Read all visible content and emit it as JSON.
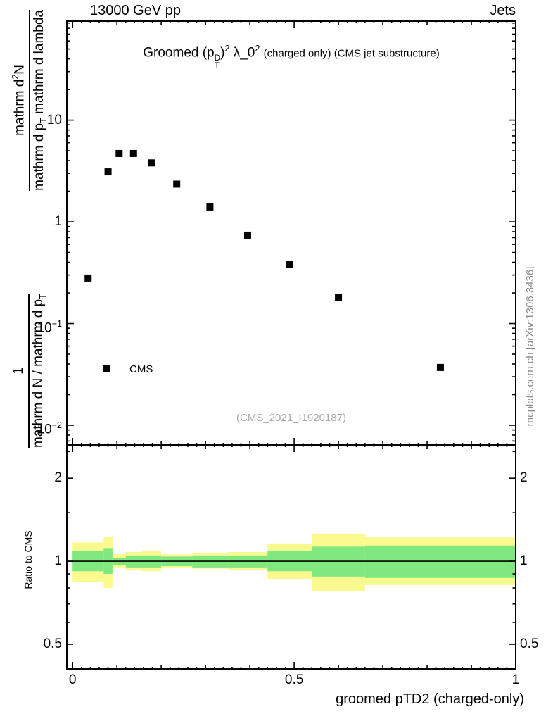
{
  "header": {
    "left": "13000 GeV pp",
    "right": "Jets"
  },
  "title": {
    "segments": [
      {
        "t": "Groomed "
      },
      {
        "t": "(p"
      },
      {
        "s": "stack",
        "sup": "D",
        "sub": "T"
      },
      {
        "t": ")"
      },
      {
        "t": "2",
        "s": "sup"
      },
      {
        "t": " λ_0"
      },
      {
        "t": "2",
        "s": "sup"
      },
      {
        "t": "  "
      },
      {
        "t": "(charged only) (CMS jet substructure)",
        "s": "small"
      }
    ]
  },
  "ylabel": {
    "frac1": {
      "num": [
        {
          "t": "1"
        }
      ],
      "den": [
        {
          "t": "mathrm d N / mathrm d p"
        },
        {
          "t": "T",
          "s": "sub"
        }
      ]
    },
    "frac2": {
      "num": [
        {
          "t": "mathrm d"
        },
        {
          "t": "2",
          "s": "sup"
        },
        {
          "t": "N"
        }
      ],
      "den": [
        {
          "t": "mathrm d p"
        },
        {
          "t": "T",
          "s": "sub"
        },
        {
          "t": " mathrm d lambda"
        }
      ]
    }
  },
  "ratio_label": "Ratio to CMS",
  "xlabel": "groomed pTD2 (charged-only)",
  "legend": {
    "label": "CMS"
  },
  "watermark": "(CMS_2021_I1920187)",
  "side_caption": "mcplots.cern.ch [arXiv:1306.3436]",
  "chart_data": {
    "type": "scatter",
    "title": "Groomed (p_T^D)^2 λ_0^2 (charged only) (CMS jet substructure)",
    "xlabel": "groomed pTD2 (charged-only)",
    "ylabel": "1/(dN/dp_T) d^2N/(dp_T dlambda)",
    "legend_entries": [
      "CMS"
    ],
    "grid": false,
    "xlim": [
      -0.013,
      1.0
    ],
    "x_ticks": [
      {
        "v": 0,
        "label": "0"
      },
      {
        "v": 0.5,
        "label": "0.5"
      },
      {
        "v": 1,
        "label": "1"
      }
    ],
    "top_panel": {
      "yscale": "log",
      "ylim": [
        0.0064,
        94
      ],
      "y_ticks": [
        {
          "v": 10,
          "base": "10",
          "exp": ""
        },
        {
          "v": 1,
          "base": "1",
          "exp": ""
        },
        {
          "v": 0.1,
          "base": "10",
          "exp": "−1"
        },
        {
          "v": 0.01,
          "base": "10",
          "exp": "−2"
        }
      ],
      "series": [
        {
          "name": "CMS",
          "marker": "square",
          "color": "#000000",
          "x": [
            0.035,
            0.08,
            0.105,
            0.1375,
            0.1775,
            0.235,
            0.31,
            0.395,
            0.49,
            0.6,
            0.83
          ],
          "y": [
            0.28,
            3.1,
            4.7,
            4.7,
            3.8,
            2.35,
            1.4,
            0.74,
            0.38,
            0.18,
            0.037
          ]
        }
      ]
    },
    "ratio_panel": {
      "yscale": "log",
      "ylim": [
        0.407,
        2.64
      ],
      "reference_line": 1.0,
      "y_ticks": [
        {
          "v": 2,
          "label": "2"
        },
        {
          "v": 1,
          "label": "1"
        },
        {
          "v": 0.5,
          "label": "0.5"
        }
      ],
      "bins": [
        [
          0,
          0.07
        ],
        [
          0.07,
          0.09
        ],
        [
          0.09,
          0.12
        ],
        [
          0.12,
          0.155
        ],
        [
          0.155,
          0.2
        ],
        [
          0.2,
          0.27
        ],
        [
          0.27,
          0.35
        ],
        [
          0.35,
          0.44
        ],
        [
          0.44,
          0.54
        ],
        [
          0.54,
          0.66
        ],
        [
          0.66,
          1.0
        ]
      ],
      "yellow_band": [
        [
          0.84,
          1.17
        ],
        [
          0.8,
          1.23
        ],
        [
          0.95,
          1.06
        ],
        [
          0.93,
          1.08
        ],
        [
          0.92,
          1.09
        ],
        [
          0.95,
          1.06
        ],
        [
          0.94,
          1.07
        ],
        [
          0.93,
          1.08
        ],
        [
          0.86,
          1.16
        ],
        [
          0.78,
          1.26
        ],
        [
          0.82,
          1.22
        ]
      ],
      "green_band": [
        [
          0.92,
          1.09
        ],
        [
          0.9,
          1.11
        ],
        [
          0.97,
          1.03
        ],
        [
          0.95,
          1.05
        ],
        [
          0.95,
          1.05
        ],
        [
          0.96,
          1.04
        ],
        [
          0.95,
          1.05
        ],
        [
          0.95,
          1.05
        ],
        [
          0.92,
          1.09
        ],
        [
          0.88,
          1.13
        ],
        [
          0.87,
          1.14
        ]
      ],
      "band_colors": {
        "yellow": "#fafa8f",
        "green": "#7fe97f"
      }
    }
  }
}
